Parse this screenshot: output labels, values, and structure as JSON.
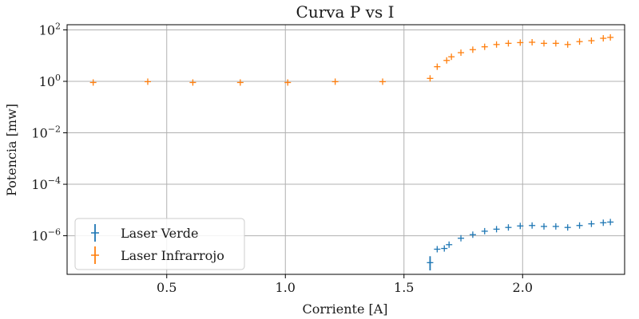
{
  "chart_data": {
    "type": "scatter",
    "title": "Curva P vs I",
    "xlabel": "Corriente [A]",
    "ylabel": "Potencia [mw]",
    "xlim": [
      0.08,
      2.43
    ],
    "ylim_log10": [
      -7.5,
      2.2
    ],
    "yscale": "log",
    "grid": true,
    "legend_position": "lower-left",
    "x_ticks": [
      0.5,
      1.0,
      1.5,
      2.0
    ],
    "x_tick_labels": [
      "0.5",
      "1.0",
      "1.5",
      "2.0"
    ],
    "y_ticks_exp": [
      2,
      0,
      -2,
      -4,
      -6
    ],
    "y_tick_base": "10",
    "y_tick_exp_labels": [
      "2",
      "0",
      "−2",
      "−4",
      "−6"
    ],
    "series": [
      {
        "name": "Laser Verde",
        "color": "#1f77b4",
        "marker": "+",
        "points": [
          {
            "x": 1.61,
            "y": 9e-08,
            "err_low": 4.5e-08,
            "err_high": 1.6e-07
          },
          {
            "x": 1.64,
            "y": 3e-07
          },
          {
            "x": 1.67,
            "y": 3.2e-07
          },
          {
            "x": 1.69,
            "y": 4.5e-07
          },
          {
            "x": 1.74,
            "y": 8e-07
          },
          {
            "x": 1.79,
            "y": 1.1e-06
          },
          {
            "x": 1.84,
            "y": 1.5e-06
          },
          {
            "x": 1.89,
            "y": 1.8e-06
          },
          {
            "x": 1.94,
            "y": 2.1e-06
          },
          {
            "x": 1.99,
            "y": 2.4e-06
          },
          {
            "x": 2.04,
            "y": 2.5e-06
          },
          {
            "x": 2.09,
            "y": 2.3e-06
          },
          {
            "x": 2.14,
            "y": 2.3e-06
          },
          {
            "x": 2.19,
            "y": 2.1e-06
          },
          {
            "x": 2.24,
            "y": 2.5e-06
          },
          {
            "x": 2.29,
            "y": 2.9e-06
          },
          {
            "x": 2.34,
            "y": 3.2e-06
          },
          {
            "x": 2.37,
            "y": 3.4e-06
          }
        ]
      },
      {
        "name": "Laser Infrarrojo",
        "color": "#ff7f0e",
        "marker": "+",
        "points": [
          {
            "x": 0.19,
            "y": 0.9
          },
          {
            "x": 0.42,
            "y": 0.97
          },
          {
            "x": 0.61,
            "y": 0.9
          },
          {
            "x": 0.81,
            "y": 0.9
          },
          {
            "x": 1.01,
            "y": 0.9
          },
          {
            "x": 1.21,
            "y": 0.97
          },
          {
            "x": 1.41,
            "y": 0.97
          },
          {
            "x": 1.61,
            "y": 1.3
          },
          {
            "x": 1.64,
            "y": 3.7
          },
          {
            "x": 1.68,
            "y": 6.5
          },
          {
            "x": 1.7,
            "y": 9.0
          },
          {
            "x": 1.74,
            "y": 13
          },
          {
            "x": 1.79,
            "y": 17
          },
          {
            "x": 1.84,
            "y": 22
          },
          {
            "x": 1.89,
            "y": 27
          },
          {
            "x": 1.94,
            "y": 30
          },
          {
            "x": 1.99,
            "y": 32
          },
          {
            "x": 2.04,
            "y": 33
          },
          {
            "x": 2.09,
            "y": 30
          },
          {
            "x": 2.14,
            "y": 30
          },
          {
            "x": 2.19,
            "y": 27
          },
          {
            "x": 2.24,
            "y": 35
          },
          {
            "x": 2.29,
            "y": 38
          },
          {
            "x": 2.34,
            "y": 47
          },
          {
            "x": 2.37,
            "y": 51
          }
        ]
      }
    ]
  }
}
